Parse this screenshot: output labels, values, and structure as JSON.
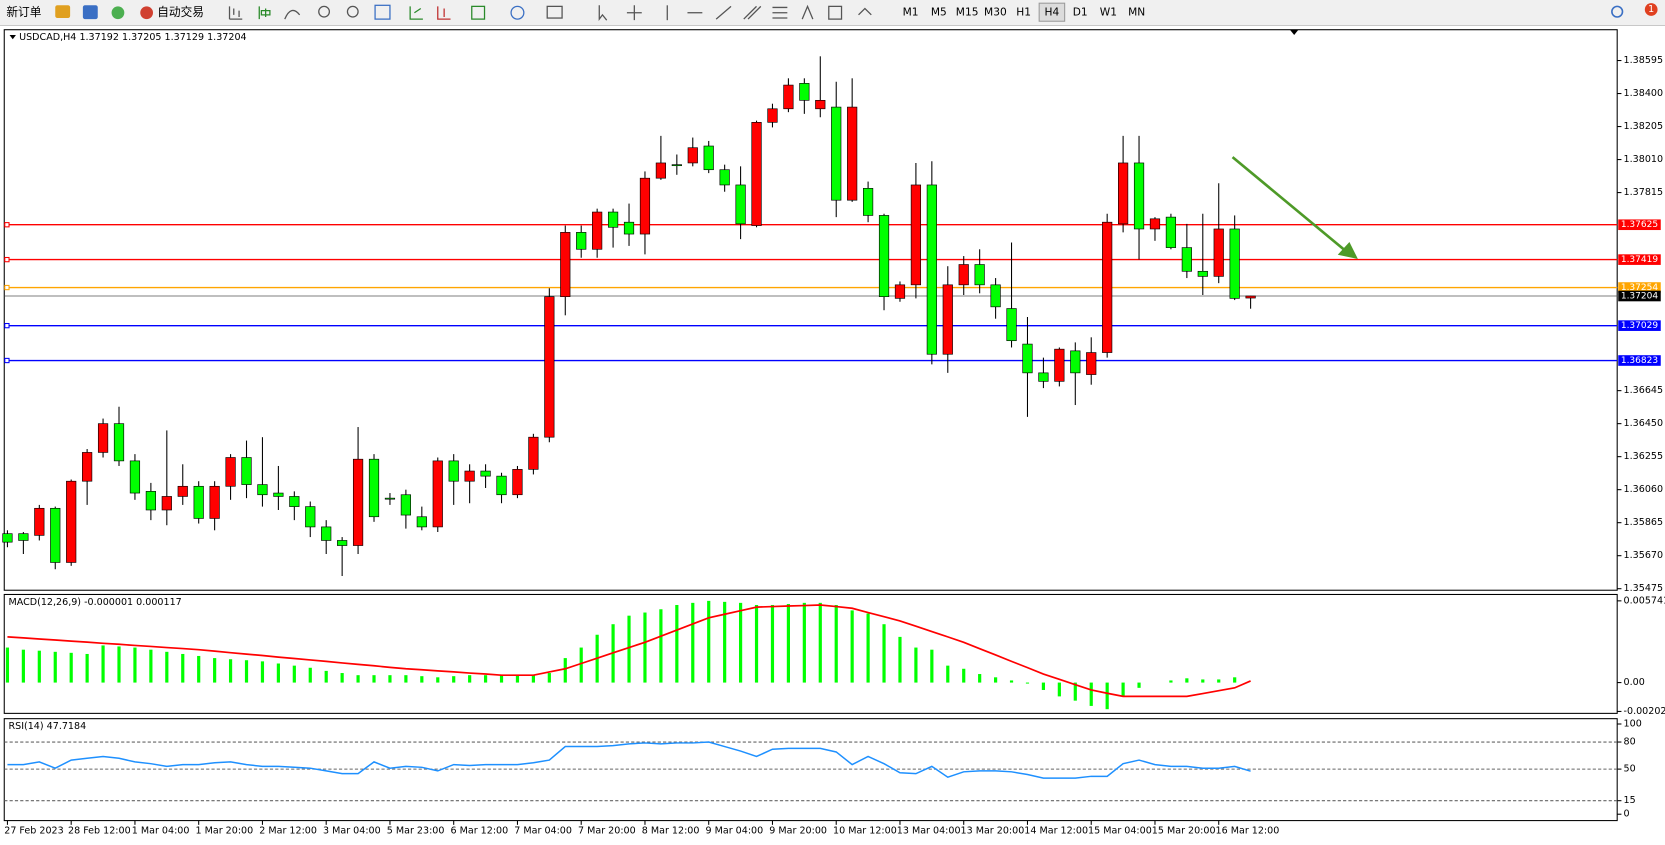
{
  "toolbar": {
    "buttons": [
      "新订单",
      "自动交易"
    ],
    "timeframes": [
      "M1",
      "M5",
      "M15",
      "M30",
      "H1",
      "H4",
      "D1",
      "W1",
      "MN"
    ],
    "active_timeframe": "H4",
    "badge": 1
  },
  "chart_data": [
    {
      "type": "candlestick",
      "title": "USDCAD,H4",
      "categories": [
        "27 Feb 2023",
        null,
        null,
        null,
        "28 Feb 12:00",
        null,
        null,
        null,
        "1 Mar 04:00",
        null,
        null,
        null,
        "1 Mar 20:00",
        null,
        null,
        null,
        "2 Mar 12:00",
        null,
        null,
        null,
        "3 Mar 04:00",
        null,
        null,
        null,
        "5 Mar 23:00",
        null,
        null,
        null,
        "6 Mar 12:00",
        null,
        null,
        null,
        "7 Mar 04:00",
        null,
        null,
        null,
        "7 Mar 20:00",
        null,
        null,
        null,
        "8 Mar 12:00",
        null,
        null,
        null,
        "9 Mar 04:00",
        null,
        null,
        null,
        "9 Mar 20:00",
        null,
        null,
        null,
        "10 Mar 12:00",
        null,
        null,
        null,
        "13 Mar 04:00",
        null,
        null,
        null,
        "13 Mar 20:00",
        null,
        null,
        null,
        "14 Mar 12:00",
        null,
        null,
        null,
        "15 Mar 04:00",
        null,
        null,
        null,
        "15 Mar 20:00",
        null,
        null,
        null,
        "16 Mar 12:00",
        null,
        null
      ],
      "open": [
        1.358,
        1.358,
        1.3579,
        1.3595,
        1.3563,
        1.3611,
        1.3628,
        1.3645,
        1.3623,
        1.3605,
        1.3594,
        1.3602,
        1.3608,
        1.3589,
        1.3608,
        1.3625,
        1.3609,
        1.3604,
        1.3602,
        1.3596,
        1.3584,
        1.3576,
        1.3573,
        1.3624,
        1.3601,
        1.3603,
        1.359,
        1.3584,
        1.3623,
        1.3611,
        1.3617,
        1.3614,
        1.3603,
        1.3618,
        1.3637,
        1.372,
        1.3758,
        1.3748,
        1.377,
        1.3764,
        1.3757,
        1.379,
        1.3798,
        1.3799,
        1.3809,
        1.3795,
        1.3786,
        1.3762,
        1.3823,
        1.3831,
        1.3846,
        1.3831,
        1.3832,
        1.3777,
        1.3784,
        1.3768,
        1.3719,
        1.3727,
        1.3786,
        1.3686,
        1.3727,
        1.3739,
        1.3727,
        1.3713,
        1.3692,
        1.3675,
        1.367,
        1.3688,
        1.3674,
        1.3687,
        1.3763,
        1.3799,
        1.376,
        1.3767,
        1.3749,
        1.3735,
        1.3732,
        1.376,
        1.37192
      ],
      "high": [
        1.3582,
        1.3581,
        1.3597,
        1.3596,
        1.3612,
        1.363,
        1.3648,
        1.3655,
        1.3627,
        1.361,
        1.3641,
        1.3621,
        1.3611,
        1.3611,
        1.3627,
        1.3635,
        1.3637,
        1.362,
        1.3605,
        1.3599,
        1.3588,
        1.3578,
        1.3643,
        1.3627,
        1.3604,
        1.3606,
        1.3596,
        1.3625,
        1.3627,
        1.3621,
        1.3621,
        1.3616,
        1.362,
        1.3639,
        1.3725,
        1.3762,
        1.3762,
        1.3772,
        1.3772,
        1.3775,
        1.3794,
        1.3815,
        1.3804,
        1.3814,
        1.3812,
        1.3798,
        1.3797,
        1.3824,
        1.3834,
        1.3849,
        1.3849,
        1.3862,
        1.3847,
        1.3849,
        1.3788,
        1.3769,
        1.3729,
        1.3799,
        1.38,
        1.3738,
        1.3744,
        1.3748,
        1.3731,
        1.3752,
        1.3708,
        1.3684,
        1.369,
        1.3693,
        1.3696,
        1.3769,
        1.3815,
        1.3815,
        1.3767,
        1.3769,
        1.3763,
        1.3769,
        1.3787,
        1.3768,
        1.37205
      ],
      "low": [
        1.3572,
        1.3568,
        1.3576,
        1.3559,
        1.3561,
        1.3597,
        1.3625,
        1.362,
        1.36,
        1.3588,
        1.3585,
        1.3597,
        1.3586,
        1.3582,
        1.36,
        1.3601,
        1.3596,
        1.3594,
        1.3588,
        1.3578,
        1.3568,
        1.3555,
        1.3568,
        1.3587,
        1.3597,
        1.3583,
        1.3582,
        1.3581,
        1.3597,
        1.3598,
        1.3607,
        1.3598,
        1.3601,
        1.3615,
        1.3634,
        1.3709,
        1.3743,
        1.3743,
        1.3749,
        1.375,
        1.3745,
        1.3789,
        1.3792,
        1.3797,
        1.3793,
        1.3782,
        1.3754,
        1.3761,
        1.382,
        1.3829,
        1.3828,
        1.3826,
        1.3767,
        1.3776,
        1.3764,
        1.3712,
        1.3717,
        1.3719,
        1.368,
        1.3675,
        1.3721,
        1.3722,
        1.3707,
        1.369,
        1.3649,
        1.3666,
        1.3667,
        1.3656,
        1.3668,
        1.3684,
        1.3758,
        1.3742,
        1.3753,
        1.3748,
        1.3731,
        1.3721,
        1.3728,
        1.3718,
        1.37129
      ],
      "close": [
        1.3575,
        1.3576,
        1.3595,
        1.3563,
        1.3611,
        1.3628,
        1.3645,
        1.3623,
        1.3604,
        1.3594,
        1.3602,
        1.3608,
        1.3589,
        1.3608,
        1.3625,
        1.3609,
        1.3603,
        1.3602,
        1.3596,
        1.3584,
        1.3576,
        1.3573,
        1.3624,
        1.359,
        1.3601,
        1.3591,
        1.3584,
        1.3623,
        1.3611,
        1.3617,
        1.3614,
        1.3603,
        1.3618,
        1.3637,
        1.372,
        1.3758,
        1.3748,
        1.377,
        1.3761,
        1.3757,
        1.379,
        1.3799,
        1.3798,
        1.3808,
        1.3795,
        1.3786,
        1.3763,
        1.3823,
        1.3831,
        1.3845,
        1.3836,
        1.3836,
        1.3777,
        1.3832,
        1.3768,
        1.372,
        1.3727,
        1.3786,
        1.3686,
        1.3727,
        1.3739,
        1.3727,
        1.3714,
        1.3694,
        1.3675,
        1.367,
        1.3689,
        1.3675,
        1.3687,
        1.3764,
        1.3799,
        1.376,
        1.3766,
        1.3749,
        1.3735,
        1.3732,
        1.376,
        1.3719,
        1.37204
      ],
      "up_color": "#ff0000",
      "down_color": "#00ff00",
      "ylim": [
        1.35466,
        1.38777
      ],
      "yticks": [
        1.38595,
        {
          "value": 1.384,
          "label": "1.38400"
        },
        1.38205,
        {
          "value": 1.3801,
          "label": "1.38010"
        },
        1.37815,
        1.36645,
        {
          "value": 1.3645,
          "label": "1.36450"
        },
        1.36255,
        {
          "value": 1.3606,
          "label": "1.36060"
        },
        1.35865,
        {
          "value": 1.3567,
          "label": "1.35670"
        },
        1.35475
      ],
      "levels": [
        {
          "value": 1.37625,
          "color": "#ff0000"
        },
        {
          "value": 1.37419,
          "color": "#ff0000"
        },
        {
          "value": 1.37254,
          "color": "#ffa500"
        },
        {
          "value": 1.37029,
          "color": "#0000ff"
        },
        {
          "value": 1.36823,
          "color": "#0000ff"
        }
      ],
      "current_price": 1.37204
    },
    {
      "type": "macd",
      "title": "MACD(12,26,9)",
      "series": [
        {
          "color": "#00ff00",
          "values": [
            0.00246,
            0.00231,
            0.00224,
            0.00216,
            0.00209,
            0.00201,
            0.00261,
            0.00254,
            0.00246,
            0.00231,
            0.00216,
            0.00201,
            0.00187,
            0.00172,
            0.00164,
            0.00157,
            0.00149,
            0.00134,
            0.00119,
            0.00104,
            0.00082,
            0.00067,
            0.00052,
            0.00052,
            0.00052,
            0.00052,
            0.00045,
            0.00037,
            0.00045,
            0.00052,
            0.00052,
            0.00052,
            0.00052,
            0.00052,
            0.00067,
            0.00172,
            0.00246,
            0.00336,
            0.0041,
            0.0047,
            0.00492,
            0.00515,
            0.00545,
            0.0056,
            0.00574,
            0.00567,
            0.0056,
            0.00545,
            0.00545,
            0.00552,
            0.0056,
            0.0056,
            0.00545,
            0.00507,
            0.00485,
            0.0041,
            0.00321,
            0.00246,
            0.00231,
            0.00119,
            0.00097,
            0.0006,
            0.00037,
            0.00015,
            -7e-05,
            -0.00052,
            -0.00097,
            -0.00127,
            -0.00164,
            -0.00187,
            -0.00097,
            -0.00037,
            0,
            0.00015,
            0.0003,
            0.00022,
            0.00022,
            0.00037,
            -1e-06
          ]
        },
        {
          "color": "#ff0000",
          "values": [
            0.00321,
            0.00314,
            0.00306,
            0.00299,
            0.00291,
            0.00284,
            0.00276,
            0.00269,
            0.00261,
            0.00254,
            0.00246,
            0.00239,
            0.00231,
            0.00221,
            0.0021,
            0.002,
            0.0019,
            0.00179,
            0.00169,
            0.00159,
            0.00149,
            0.00138,
            0.00128,
            0.00118,
            0.00107,
            0.00097,
            0.0009,
            0.00082,
            0.00075,
            0.00067,
            0.0006,
            0.00052,
            0.00052,
            0.00052,
            0.00075,
            0.00097,
            0.00134,
            0.00171,
            0.00209,
            0.00246,
            0.00283,
            0.00326,
            0.00369,
            0.00412,
            0.00455,
            0.0048,
            0.00505,
            0.0053,
            0.00534,
            0.00538,
            0.00541,
            0.00545,
            0.00534,
            0.00522,
            0.00492,
            0.00463,
            0.00433,
            0.00396,
            0.00358,
            0.00321,
            0.00283,
            0.00238,
            0.00194,
            0.00149,
            0.00105,
            0.0006,
            0.00023,
            -0.00015,
            -0.00052,
            -0.00075,
            -0.00097,
            -0.00097,
            -0.00097,
            -0.00097,
            -0.00097,
            -0.00077,
            -0.00057,
            -0.00037,
            0.000117
          ]
        }
      ],
      "ylim": [
        -0.002163,
        0.006189
      ],
      "yticks": [
        0.005741,
        {
          "value": 0,
          "label": "0.00"
        },
        -0.002027
      ]
    },
    {
      "type": "line",
      "title": "RSI(14)",
      "color": "#1e90ff",
      "values": [
        55,
        55,
        58,
        51,
        60,
        62,
        64,
        62,
        58,
        56,
        53,
        55,
        55,
        57,
        58,
        55,
        53,
        53,
        52,
        51,
        48,
        45,
        45,
        58,
        51,
        53,
        52,
        48,
        55,
        54,
        55,
        55,
        55,
        57,
        60,
        75,
        75,
        75,
        76,
        78,
        79,
        78,
        79,
        79,
        80,
        75,
        70,
        64,
        72,
        73,
        73,
        73,
        69,
        55,
        64,
        56,
        46,
        45,
        53,
        41,
        47,
        48,
        48,
        47,
        44,
        40,
        40,
        40,
        42,
        42,
        56,
        60,
        55,
        53,
        53,
        51,
        51,
        53,
        47.7184
      ],
      "ylim": [
        -7.06,
        105.9
      ],
      "yticks": [
        100,
        80,
        50,
        15,
        0
      ],
      "levels": [
        80,
        50,
        15
      ]
    }
  ]
}
